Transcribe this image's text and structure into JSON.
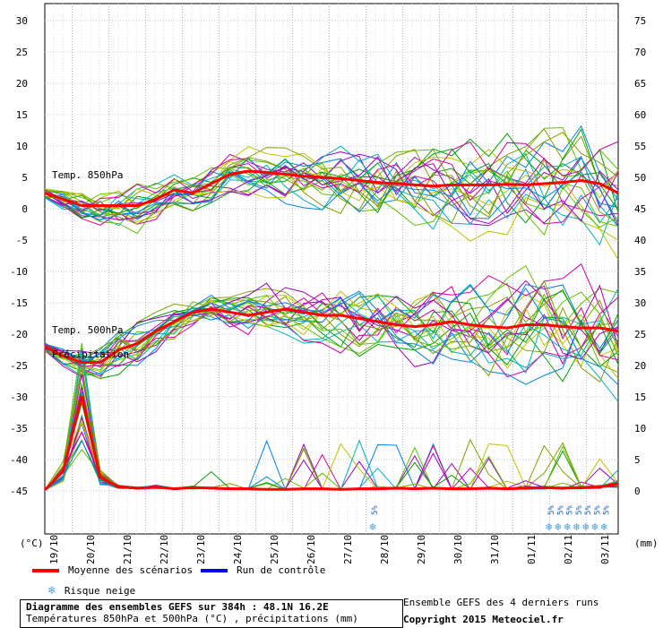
{
  "chart_data": {
    "type": "line",
    "title": "Diagramme des ensembles GEFS sur 384h : 48.1N 16.2E",
    "subtitle": "Températures 850hPa et 500hPa (°C) , précipitations (mm)",
    "left_axis": {
      "unit": "(°C)",
      "ticks": [
        30,
        25,
        20,
        15,
        10,
        5,
        0,
        -5,
        -10,
        -15,
        -20,
        -25,
        -30,
        -35,
        -40,
        -45
      ]
    },
    "right_axis": {
      "unit": "(mm)",
      "ticks": [
        75,
        70,
        65,
        60,
        55,
        50,
        45,
        40,
        35,
        30,
        25,
        20,
        15,
        10,
        5,
        0
      ]
    },
    "x_categories": [
      "19/10",
      "20/10",
      "21/10",
      "22/10",
      "23/10",
      "24/10",
      "25/10",
      "26/10",
      "27/10",
      "28/10",
      "29/10",
      "30/10",
      "31/10",
      "01/11",
      "02/11",
      "03/11"
    ],
    "grid": true,
    "series_labels": {
      "t850": "Temp. 850hPa",
      "t500": "Temp. 500hPa",
      "precip": "Précipitation"
    },
    "mean_t850": [
      2.5,
      1.5,
      0.5,
      0.5,
      0.5,
      0.5,
      1.5,
      3.0,
      2.5,
      4.0,
      5.5,
      6.0,
      5.8,
      5.5,
      5.2,
      5.0,
      4.8,
      4.5,
      4.2,
      4.0,
      3.8,
      3.6,
      3.8,
      3.8,
      3.8,
      3.9,
      3.8,
      4.0,
      4.2,
      4.5,
      4.0,
      2.5
    ],
    "mean_t500": [
      -22.0,
      -23.5,
      -24.5,
      -24.5,
      -22.5,
      -21.5,
      -19.5,
      -18.0,
      -16.5,
      -16.0,
      -16.5,
      -17.0,
      -16.5,
      -16.0,
      -16.5,
      -17.0,
      -17.0,
      -17.5,
      -18.0,
      -18.5,
      -18.8,
      -18.5,
      -18.0,
      -18.5,
      -18.8,
      -19.0,
      -18.5,
      -18.5,
      -18.8,
      -19.0,
      -19.0,
      -19.5
    ],
    "mean_precip": [
      0,
      3,
      15,
      2,
      0.5,
      0.3,
      0.5,
      0.2,
      0.4,
      0.3,
      0.2,
      0.2,
      0.1,
      0.1,
      0.2,
      0.2,
      0.1,
      0.2,
      0.2,
      0.3,
      0.2,
      0.3,
      0.2,
      0.2,
      0.3,
      0.2,
      0.3,
      0.4,
      0.3,
      0.4,
      0.5,
      1.0
    ],
    "snow_risk": [
      {
        "date_index": 9.2,
        "label": "5%"
      },
      {
        "date_index": 14.0,
        "label": "5%"
      },
      {
        "date_index": 14.25,
        "label": "5%"
      },
      {
        "date_index": 14.5,
        "label": "5%"
      },
      {
        "date_index": 14.75,
        "label": "5%"
      },
      {
        "date_index": 15.0,
        "label": "5%"
      },
      {
        "date_index": 15.25,
        "label": "5%"
      },
      {
        "date_index": 15.5,
        "label": "5%"
      }
    ],
    "colors": {
      "mean": "#ff0000",
      "control": "#0000ff",
      "members": [
        "#00a000",
        "#a000c0",
        "#c0c000",
        "#00b0c0",
        "#60c000",
        "#d000a0",
        "#0080e0",
        "#80a000"
      ]
    }
  },
  "legend": {
    "mean_label": "Moyenne des scénarios",
    "control_label": "Run de contrôle",
    "snow_label": "Risque neige"
  },
  "footer": {
    "title": "Diagramme des ensembles GEFS sur 384h : 48.1N 16.2E",
    "subtitle": "Températures 850hPa et 500hPa (°C) , précipitations (mm)",
    "runs_note": "Ensemble GEFS des 4 derniers runs",
    "copyright": "Copyright 2015 Meteociel.fr"
  }
}
